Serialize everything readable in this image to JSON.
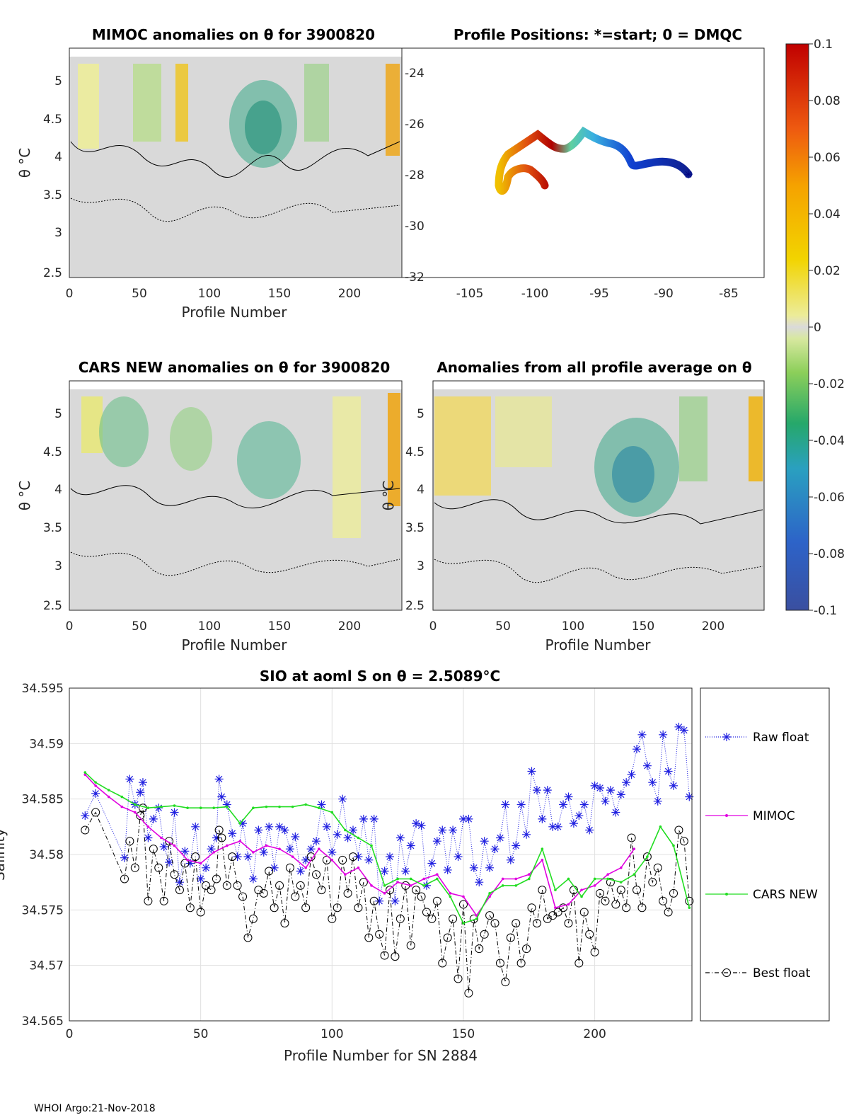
{
  "footer": "WHOI Argo:21-Nov-2018",
  "colors": {
    "raw": "#1f1fe0",
    "mimoc": "#e000e0",
    "cars": "#22dd22",
    "best": "#000000",
    "track_start": "#000080"
  },
  "panels": {
    "mimoc": {
      "title": "MIMOC anomalies on θ  for 3900820",
      "ylabel": "θ °C",
      "xlabel": "Profile Number",
      "xticks": [
        "0",
        "50",
        "100",
        "150",
        "200"
      ],
      "yticks": [
        "2.5",
        "3",
        "3.5",
        "4",
        "4.5",
        "5"
      ]
    },
    "positions": {
      "title": "Profile Positions: *=start; 0 = DMQC",
      "xticks": [
        "-105",
        "-100",
        "-95",
        "-90",
        "-85"
      ],
      "yticks": [
        "-24",
        "-26",
        "-28",
        "-30",
        "-32"
      ]
    },
    "cars": {
      "title": "CARS NEW anomalies on θ for 3900820",
      "ylabel": "θ °C",
      "xlabel": "Profile Number",
      "xticks": [
        "0",
        "50",
        "100",
        "150",
        "200"
      ],
      "yticks": [
        "2.5",
        "3",
        "3.5",
        "4",
        "4.5",
        "5"
      ]
    },
    "allavg": {
      "title": "Anomalies from all profile average on θ",
      "ylabel": "θ °C",
      "xlabel": "Profile Number",
      "xticks": [
        "0",
        "50",
        "100",
        "150",
        "200"
      ],
      "yticks": [
        "2.5",
        "3",
        "3.5",
        "4",
        "4.5",
        "5"
      ]
    }
  },
  "colorbar": {
    "ticks": [
      "0.1",
      "0.08",
      "0.06",
      "0.04",
      "0.02",
      "0",
      "-0.02",
      "-0.04",
      "-0.06",
      "-0.08",
      "-0.1"
    ]
  },
  "chart_data": {
    "type": "line",
    "title": "SIO at aoml S on θ = 2.5089°C",
    "xlabel": "Profile Number for SN 2884",
    "ylabel": "Salinity",
    "xlim": [
      0,
      237
    ],
    "ylim": [
      34.565,
      34.595
    ],
    "xticks": [
      "0",
      "50",
      "100",
      "150",
      "200"
    ],
    "yticks": [
      "34.565",
      "34.57",
      "34.575",
      "34.58",
      "34.585",
      "34.59",
      "34.595"
    ],
    "grid": true,
    "legend": [
      "Raw float",
      "MIMOC",
      "CARS NEW",
      "Best float"
    ],
    "series": [
      {
        "name": "Raw float",
        "x": [
          6,
          10,
          21,
          23,
          25,
          27,
          28,
          30,
          32,
          34,
          36,
          38,
          40,
          42,
          44,
          46,
          48,
          50,
          52,
          54,
          56,
          57,
          58,
          60,
          62,
          64,
          66,
          68,
          70,
          72,
          74,
          76,
          78,
          80,
          82,
          84,
          86,
          88,
          90,
          92,
          94,
          96,
          98,
          100,
          102,
          104,
          106,
          108,
          110,
          112,
          114,
          116,
          118,
          120,
          122,
          124,
          126,
          128,
          130,
          132,
          134,
          136,
          138,
          140,
          142,
          144,
          146,
          148,
          150,
          152,
          154,
          156,
          158,
          160,
          162,
          164,
          166,
          168,
          170,
          172,
          174,
          176,
          178,
          180,
          182,
          184,
          186,
          188,
          190,
          192,
          194,
          196,
          198,
          200,
          202,
          204,
          206,
          208,
          210,
          212,
          214,
          216,
          218,
          220,
          222,
          224,
          226,
          228,
          230,
          232,
          234,
          236
        ],
        "values": [
          34.5835,
          34.5855,
          34.5797,
          34.5868,
          34.5845,
          34.5856,
          34.5865,
          34.5815,
          34.5832,
          34.5842,
          34.5807,
          34.5793,
          34.5838,
          34.5775,
          34.5803,
          34.5792,
          34.5825,
          34.5778,
          34.5788,
          34.5805,
          34.5815,
          34.5868,
          34.5852,
          34.5845,
          34.5819,
          34.5798,
          34.5828,
          34.5798,
          34.5778,
          34.5822,
          34.5802,
          34.5825,
          34.5788,
          34.5825,
          34.5822,
          34.5805,
          34.5816,
          34.5785,
          34.5795,
          34.5805,
          34.5812,
          34.5845,
          34.5825,
          34.5802,
          34.5818,
          34.585,
          34.5815,
          34.5822,
          34.5798,
          34.5832,
          34.5795,
          34.5832,
          34.5758,
          34.5785,
          34.5798,
          34.5758,
          34.5815,
          34.5785,
          34.5808,
          34.5828,
          34.5826,
          34.5772,
          34.5792,
          34.5812,
          34.5822,
          34.5786,
          34.5822,
          34.5798,
          34.5832,
          34.5832,
          34.5788,
          34.5775,
          34.5812,
          34.5788,
          34.5805,
          34.5815,
          34.5845,
          34.5795,
          34.5808,
          34.5845,
          34.5818,
          34.5875,
          34.5858,
          34.5832,
          34.5858,
          34.5825,
          34.5825,
          34.5845,
          34.5852,
          34.5828,
          34.5835,
          34.5845,
          34.5822,
          34.5862,
          34.586,
          34.5848,
          34.5858,
          34.5838,
          34.5854,
          34.5865,
          34.5872,
          34.5895,
          34.5908,
          34.588,
          34.5865,
          34.5848,
          34.5908,
          34.5875,
          34.5862,
          34.5915,
          34.5912,
          34.5852
        ]
      },
      {
        "name": "MIMOC",
        "x": [
          6,
          10,
          15,
          20,
          25,
          30,
          35,
          40,
          45,
          50,
          55,
          60,
          65,
          70,
          75,
          80,
          85,
          90,
          95,
          100,
          105,
          110,
          115,
          120,
          125,
          130,
          135,
          140,
          145,
          150,
          155,
          160,
          165,
          170,
          175,
          180,
          185,
          190,
          195,
          200,
          205,
          210,
          215
        ],
        "values": [
          34.5872,
          34.5862,
          34.5852,
          34.5843,
          34.5838,
          34.5825,
          34.5815,
          34.5808,
          34.5795,
          34.5792,
          34.5802,
          34.5808,
          34.5812,
          34.5802,
          34.5808,
          34.5805,
          34.5798,
          34.5788,
          34.5805,
          34.5795,
          34.5782,
          34.5788,
          34.5772,
          34.5765,
          34.5775,
          34.5772,
          34.5778,
          34.5782,
          34.5765,
          34.5762,
          34.5745,
          34.5762,
          34.5778,
          34.5778,
          34.5782,
          34.5795,
          34.5752,
          34.5755,
          34.5768,
          34.5772,
          34.5782,
          34.5788,
          34.5805
        ]
      },
      {
        "name": "CARS NEW",
        "x": [
          6,
          10,
          15,
          20,
          25,
          30,
          35,
          40,
          45,
          50,
          55,
          60,
          65,
          70,
          75,
          80,
          85,
          90,
          95,
          100,
          105,
          110,
          115,
          120,
          125,
          130,
          135,
          140,
          145,
          150,
          155,
          160,
          165,
          170,
          175,
          180,
          185,
          190,
          195,
          200,
          205,
          210,
          215,
          220,
          225,
          230,
          236
        ],
        "values": [
          34.5874,
          34.5865,
          34.5858,
          34.5852,
          34.5845,
          34.5842,
          34.5843,
          34.5844,
          34.5842,
          34.5842,
          34.5842,
          34.5843,
          34.5828,
          34.5842,
          34.5843,
          34.5843,
          34.5843,
          34.5845,
          34.5842,
          34.5838,
          34.5822,
          34.5815,
          34.5808,
          34.5772,
          34.5778,
          34.5778,
          34.5772,
          34.5778,
          34.5762,
          34.5738,
          34.5742,
          34.5765,
          34.5772,
          34.5772,
          34.5778,
          34.5805,
          34.5768,
          34.5778,
          34.5762,
          34.5778,
          34.5778,
          34.5775,
          34.5782,
          34.5798,
          34.5825,
          34.5808,
          34.5752
        ]
      },
      {
        "name": "Best float",
        "x": [
          6,
          10,
          21,
          23,
          25,
          27,
          28,
          30,
          32,
          34,
          36,
          38,
          40,
          42,
          44,
          46,
          48,
          50,
          52,
          54,
          56,
          57,
          58,
          60,
          62,
          64,
          66,
          68,
          70,
          72,
          74,
          76,
          78,
          80,
          82,
          84,
          86,
          88,
          90,
          92,
          94,
          96,
          98,
          100,
          102,
          104,
          106,
          108,
          110,
          112,
          114,
          116,
          118,
          120,
          122,
          124,
          126,
          128,
          130,
          132,
          134,
          136,
          138,
          140,
          142,
          144,
          146,
          148,
          150,
          152,
          154,
          156,
          158,
          160,
          162,
          164,
          166,
          168,
          170,
          172,
          174,
          176,
          178,
          180,
          182,
          184,
          186,
          188,
          190,
          192,
          194,
          196,
          198,
          200,
          202,
          204,
          206,
          208,
          210,
          212,
          214,
          216,
          218,
          220,
          222,
          224,
          226,
          228,
          230,
          232,
          234,
          236
        ],
        "values": [
          34.5822,
          34.5838,
          34.5778,
          34.5812,
          34.5788,
          34.5835,
          34.5842,
          34.5758,
          34.5805,
          34.5788,
          34.5758,
          34.5812,
          34.5782,
          34.5768,
          34.5792,
          34.5752,
          34.5798,
          34.5748,
          34.5772,
          34.5768,
          34.5778,
          34.5822,
          34.5815,
          34.5772,
          34.5798,
          34.5772,
          34.5762,
          34.5725,
          34.5742,
          34.5768,
          34.5765,
          34.5785,
          34.5752,
          34.5772,
          34.5738,
          34.5788,
          34.5762,
          34.5772,
          34.5752,
          34.5798,
          34.5782,
          34.5768,
          34.5795,
          34.5742,
          34.5752,
          34.5795,
          34.5765,
          34.5798,
          34.5752,
          34.5775,
          34.5725,
          34.5758,
          34.5728,
          34.5709,
          34.5768,
          34.5708,
          34.5742,
          34.5772,
          34.5718,
          34.5768,
          34.5762,
          34.5748,
          34.5742,
          34.5758,
          34.5702,
          34.5725,
          34.5742,
          34.5688,
          34.5755,
          34.5675,
          34.5742,
          34.5715,
          34.5728,
          34.5745,
          34.5738,
          34.5702,
          34.5685,
          34.5725,
          34.5738,
          34.5702,
          34.5715,
          34.5752,
          34.5738,
          34.5768,
          34.5742,
          34.5745,
          34.5748,
          34.5752,
          34.5738,
          34.5768,
          34.5702,
          34.5748,
          34.5728,
          34.5712,
          34.5765,
          34.5758,
          34.5775,
          34.5755,
          34.5768,
          34.5752,
          34.5815,
          34.5768,
          34.5752,
          34.5798,
          34.5775,
          34.5788,
          34.5758,
          34.5748,
          34.5765,
          34.5822,
          34.5812,
          34.5758
        ]
      }
    ]
  }
}
